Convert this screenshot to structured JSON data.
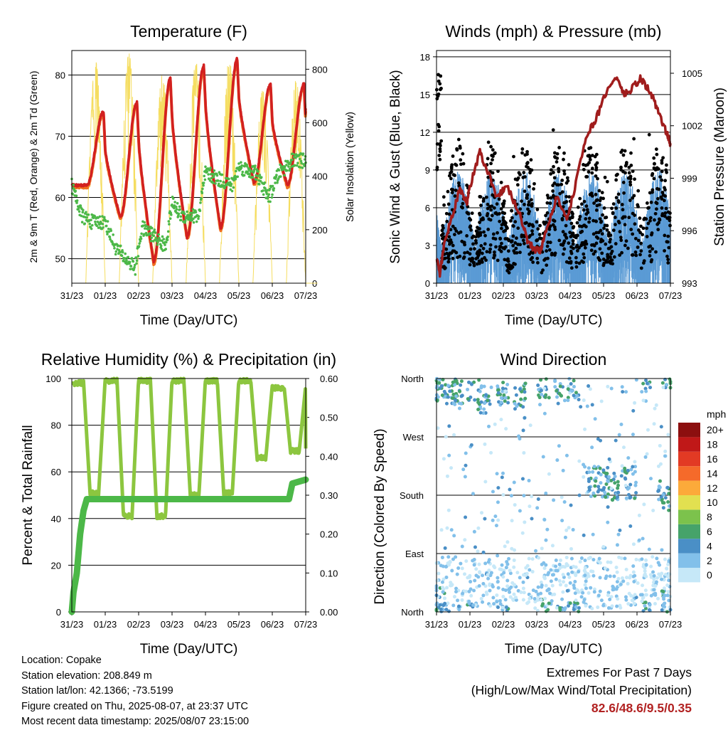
{
  "colors": {
    "temp_red": "#d22020",
    "temp_orange": "#f07020",
    "dewpoint_green": "#4cb848",
    "solar_yellow": "#f5dd60",
    "wind_blue": "#5b9bd5",
    "gust_black": "#000000",
    "pressure_maroon": "#a01c1c",
    "rh_green": "#8cc63f",
    "precip_green": "#4cb848"
  },
  "info": {
    "location": "Location: Copake",
    "elevation": "Station elevation: 208.849 m",
    "latlon": "Station lat/lon: 42.1366; -73.5199",
    "created": "Figure created on Thu, 2025-08-07, at 23:37 UTC",
    "recent": "Most recent data timestamp: 2025/08/07 23:15:00"
  },
  "extremes": {
    "title": "Extremes For Past 7 Days",
    "subtitle": "(High/Low/Max Wind/Total Precipitation)",
    "values": "82.6/48.6/9.5/0.35"
  },
  "chart_data": [
    {
      "type": "line",
      "title": "Temperature (F)",
      "xlabel": "Time (Day/UTC)",
      "ylabel": "2m & 9m T (Red, Orange) & 2m Td (Green)",
      "ylabel_right": "Solar Insolation (Yellow)",
      "x_ticks": [
        "31/23",
        "01/23",
        "02/23",
        "03/23",
        "04/23",
        "05/23",
        "06/23",
        "07/23"
      ],
      "xlim": [
        0,
        7
      ],
      "ylim": [
        46,
        84
      ],
      "ylim_right": [
        0,
        870
      ],
      "y_ticks": [
        50,
        60,
        70,
        80
      ],
      "y_ticks_right": [
        0,
        200,
        400,
        600,
        800
      ],
      "series": [
        {
          "name": "2m T",
          "axis": "left",
          "color": "#d22020",
          "daily_max": [
            74,
            75.5,
            79.5,
            81.5,
            82.6,
            78.5,
            78.5
          ],
          "daily_min": [
            62,
            56.8,
            49.5,
            53.5,
            55,
            62.5,
            62
          ],
          "start": 62,
          "end": 74.5
        },
        {
          "name": "9m T",
          "axis": "left",
          "color": "#f07020"
        },
        {
          "name": "2m Td",
          "axis": "left",
          "color": "#4cb848",
          "approx_points": [
            [
              0,
              62
            ],
            [
              0.3,
              57
            ],
            [
              0.6,
              56
            ],
            [
              1.0,
              56
            ],
            [
              1.3,
              52
            ],
            [
              1.6,
              50
            ],
            [
              1.9,
              48.6
            ],
            [
              2.1,
              55
            ],
            [
              2.4,
              54
            ],
            [
              2.8,
              52
            ],
            [
              3.0,
              59
            ],
            [
              3.3,
              57
            ],
            [
              3.8,
              57
            ],
            [
              4.0,
              64
            ],
            [
              4.4,
              63
            ],
            [
              4.8,
              62
            ],
            [
              5.0,
              65
            ],
            [
              5.5,
              64
            ],
            [
              5.9,
              60
            ],
            [
              6.2,
              64
            ],
            [
              6.6,
              66
            ],
            [
              7.0,
              66
            ]
          ]
        },
        {
          "name": "Solar Insolation",
          "axis": "right",
          "color": "#f5dd60",
          "daily_peak": [
            830,
            860,
            780,
            830,
            840,
            720,
            760
          ]
        }
      ]
    },
    {
      "type": "scatter",
      "title": "Winds (mph) & Pressure (mb)",
      "xlabel": "Time (Day/UTC)",
      "ylabel": "Sonic Wind & Gust (Blue, Black)",
      "ylabel_right": "Station Pressure (Maroon)",
      "x_ticks": [
        "31/23",
        "01/23",
        "02/23",
        "03/23",
        "04/23",
        "05/23",
        "06/23",
        "07/23"
      ],
      "xlim": [
        0,
        7
      ],
      "ylim": [
        0,
        18.5
      ],
      "ylim_right": [
        993,
        1006.3
      ],
      "y_ticks": [
        0,
        3,
        6,
        9,
        12,
        15,
        18
      ],
      "y_ticks_right": [
        993,
        996,
        999,
        1002,
        1005
      ],
      "series": [
        {
          "name": "Sonic Wind",
          "color": "#5b9bd5",
          "max": 9.5
        },
        {
          "name": "Gust",
          "color": "#000000",
          "max": 17
        },
        {
          "name": "Station Pressure",
          "color": "#a01c1c",
          "points": [
            [
              0,
              994.5
            ],
            [
              0.1,
              993.5
            ],
            [
              0.25,
              995.5
            ],
            [
              0.5,
              997
            ],
            [
              0.7,
              998.5
            ],
            [
              0.9,
              997.5
            ],
            [
              1.0,
              998.5
            ],
            [
              1.3,
              1000.5
            ],
            [
              1.5,
              999.5
            ],
            [
              1.8,
              998
            ],
            [
              2.1,
              998.5
            ],
            [
              2.5,
              997
            ],
            [
              2.7,
              995.5
            ],
            [
              2.9,
              995
            ],
            [
              3.1,
              994.8
            ],
            [
              3.3,
              996
            ],
            [
              3.6,
              998
            ],
            [
              3.9,
              996.5
            ],
            [
              4.2,
              999
            ],
            [
              4.5,
              1001.5
            ],
            [
              4.8,
              1002.5
            ],
            [
              5.1,
              1004
            ],
            [
              5.4,
              1004.8
            ],
            [
              5.6,
              1003.8
            ],
            [
              5.8,
              1004
            ],
            [
              6.1,
              1004.7
            ],
            [
              6.3,
              1004.2
            ],
            [
              6.5,
              1003.5
            ],
            [
              6.7,
              1002.5
            ],
            [
              6.9,
              1001.5
            ],
            [
              7.0,
              1001
            ]
          ]
        }
      ]
    },
    {
      "type": "line",
      "title": "Relative Humidity (%) & Precipitation (in)",
      "xlabel": "Time (Day/UTC)",
      "ylabel": "Percent & Total Rainfall",
      "x_ticks": [
        "31/23",
        "01/23",
        "02/23",
        "03/23",
        "04/23",
        "05/23",
        "06/23",
        "07/23"
      ],
      "xlim": [
        0,
        7
      ],
      "ylim": [
        0,
        100
      ],
      "ylim_right": [
        0,
        0.6
      ],
      "y_ticks": [
        0,
        20,
        40,
        60,
        80,
        100
      ],
      "y_ticks_right": [
        "0.00",
        "0.10",
        "0.20",
        "0.30",
        "0.40",
        "0.50",
        "0.60"
      ],
      "series": [
        {
          "name": "Relative Humidity",
          "axis": "left",
          "color": "#8cc63f",
          "daily_min": [
            50,
            40,
            40,
            49,
            50,
            65,
            68
          ],
          "daily_max": [
            99,
            100,
            100,
            100,
            100,
            100,
            97
          ]
        },
        {
          "name": "Total Precipitation",
          "axis": "right",
          "color": "#4cb848",
          "points": [
            [
              0,
              0
            ],
            [
              0.05,
              0.05
            ],
            [
              0.15,
              0.1
            ],
            [
              0.25,
              0.2
            ],
            [
              0.35,
              0.26
            ],
            [
              0.45,
              0.29
            ],
            [
              6.5,
              0.29
            ],
            [
              6.6,
              0.33
            ],
            [
              7.0,
              0.34
            ]
          ]
        }
      ]
    },
    {
      "type": "scatter",
      "title": "Wind Direction",
      "xlabel": "Time (Day/UTC)",
      "ylabel": "Direction (Colored By Speed)",
      "x_ticks": [
        "31/23",
        "01/23",
        "02/23",
        "03/23",
        "04/23",
        "05/23",
        "06/23",
        "07/23"
      ],
      "xlim": [
        0,
        7
      ],
      "y_ticks": [
        "North",
        "East",
        "South",
        "West",
        "North"
      ],
      "y_tick_values": [
        0,
        90,
        180,
        270,
        360
      ],
      "ylim": [
        0,
        360
      ],
      "colorbar": {
        "title": "mph",
        "labels": [
          "0",
          "2",
          "4",
          "6",
          "8",
          "10",
          "12",
          "14",
          "16",
          "18",
          "20+"
        ],
        "colors": [
          "#c6e8f8",
          "#82c0ea",
          "#4a8fc6",
          "#46a36a",
          "#7cc24c",
          "#e2e050",
          "#fcaa3a",
          "#f56a2a",
          "#e23a24",
          "#c01818",
          "#8c0f0f"
        ]
      }
    }
  ]
}
